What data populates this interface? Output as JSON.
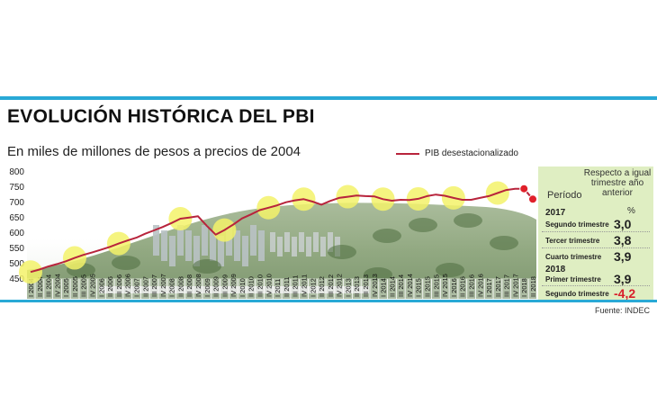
{
  "header": {
    "title": "EVOLUCIÓN HISTÓRICA DEL PBI",
    "subtitle": "En miles de millones de pesos a precios de 2004",
    "source": "Fuente: INDEC"
  },
  "colors": {
    "accent_blue": "#29a9d6",
    "series_line": "#b8243c",
    "marker_red": "#e0202a",
    "highlight_yellow": "#f3f26a",
    "panel_green": "#dfeec2"
  },
  "chart_data": {
    "type": "line",
    "title": "EVOLUCIÓN HISTÓRICA DEL PBI",
    "subtitle": "En miles de millones de pesos a precios de 2004",
    "xlabel": "",
    "ylabel": "",
    "ylim": [
      450,
      800
    ],
    "yticks": [
      "800",
      "750",
      "700",
      "650",
      "600",
      "550",
      "500",
      "450"
    ],
    "grid": false,
    "legend": "top-right",
    "categories": [
      "I 2004",
      "II 2004",
      "III 2004",
      "IV 2004",
      "I 2005",
      "II 2005",
      "III 2005",
      "IV 2005",
      "I 2006",
      "II 2006",
      "III 2006",
      "IV 2006",
      "I 2007",
      "II 2007",
      "III 2007",
      "IV 2007",
      "I 2008",
      "II 2008",
      "III 2008",
      "IV 2008",
      "I 2009",
      "II 2009",
      "III 2009",
      "IV 2009",
      "I 2010",
      "II 2010",
      "III 2010",
      "IV 2010",
      "I 2011",
      "II 2011",
      "III 2011",
      "IV 2011",
      "I 2012",
      "II 2012",
      "III 2012",
      "IV 2012",
      "I 2013",
      "II 2013",
      "III 2013",
      "IV 2013",
      "I 2014",
      "II 2014",
      "III 2014",
      "IV 2014",
      "I 2015",
      "II 2015",
      "III 2015",
      "IV 2015",
      "I 2016",
      "II 2016",
      "III 2016",
      "IV 2016",
      "I 2017",
      "II 2017",
      "III 2017",
      "IV 2017",
      "I 2018",
      "II 2018"
    ],
    "series": [
      {
        "name": "PIB desestacionalizado",
        "values": [
          470,
          478,
          488,
          496,
          505,
          516,
          526,
          534,
          543,
          552,
          563,
          573,
          582,
          595,
          606,
          617,
          630,
          644,
          648,
          652,
          621,
          592,
          607,
          625,
          645,
          658,
          672,
          680,
          688,
          698,
          704,
          708,
          700,
          690,
          702,
          712,
          716,
          720,
          718,
          717,
          708,
          703,
          706,
          705,
          709,
          718,
          723,
          719,
          712,
          706,
          706,
          712,
          718,
          728,
          738,
          742,
          742,
          708
        ]
      }
    ],
    "highlighted_points": [
      0,
      5,
      10,
      17,
      22,
      27,
      31,
      36,
      40,
      44,
      48,
      53
    ],
    "marker_points": [
      56,
      57
    ]
  },
  "panel": {
    "heading_left": "Período",
    "heading_right_lines": [
      "Respecto a igual",
      "trimestre año",
      "anterior"
    ],
    "unit": "%",
    "groups": [
      {
        "year": "2017",
        "rows": [
          {
            "label": "Segundo trimestre",
            "value": "3,0",
            "negative": false
          },
          {
            "label": "Tercer trimestre",
            "value": "3,8",
            "negative": false
          },
          {
            "label": "Cuarto trimestre",
            "value": "3,9",
            "negative": false
          }
        ]
      },
      {
        "year": "2018",
        "rows": [
          {
            "label": "Primer trimestre",
            "value": "3,9",
            "negative": false
          },
          {
            "label": "Segundo trimestre",
            "value": "-4,2",
            "negative": true
          }
        ]
      }
    ]
  },
  "legend": {
    "label": "PIB desestacionalizado"
  }
}
